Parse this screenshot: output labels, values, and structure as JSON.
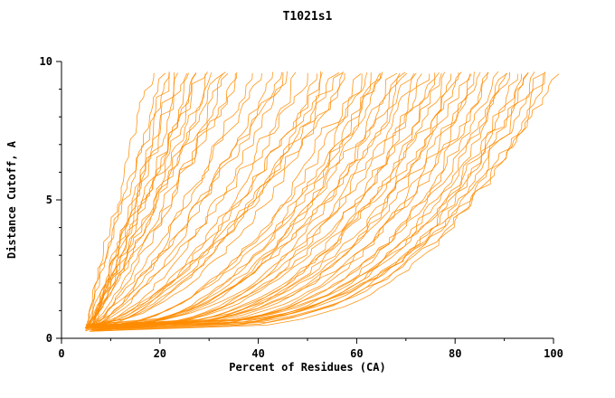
{
  "page": {
    "background": "#ffffff"
  },
  "chart_data": {
    "type": "line",
    "title": "T1021s1",
    "xlabel": "Percent of Residues (CA)",
    "ylabel": "Distance Cutoff, A",
    "xlim": [
      0,
      100
    ],
    "ylim": [
      0,
      10
    ],
    "x_ticks": [
      0,
      20,
      40,
      60,
      80,
      100
    ],
    "x_minor_ticks": [
      10,
      30,
      50,
      70,
      90
    ],
    "y_ticks": [
      0,
      5,
      10
    ],
    "y_minor_ticks": [
      1,
      2,
      3,
      4,
      6,
      7,
      8,
      9
    ],
    "grid": false,
    "legend": "none",
    "line_color": "#ff8c00",
    "axis_color": "#000000",
    "description": "Bundle of ~75 model accuracy curves (GDT-style plot): each curve shows percent of CA residues (x) under a given distance cutoff in Angstroms (y). Curves start near x=5 at y~0.3 and rise to y~9.6, reaching the top at x values from ~18 to ~100.",
    "curve_y_start": 0.35,
    "curve_y_end": 9.6,
    "curves_format": "[x_at_bottom, x_at_top, shape_exponent]",
    "curves": [
      [
        5,
        18,
        1.1
      ],
      [
        5,
        20,
        1.0
      ],
      [
        6,
        21,
        0.9
      ],
      [
        5,
        22,
        1.2
      ],
      [
        6,
        23,
        1.0
      ],
      [
        5,
        24,
        0.95
      ],
      [
        6,
        25,
        1.1
      ],
      [
        5,
        26,
        0.85
      ],
      [
        6,
        27,
        1.0
      ],
      [
        5,
        28,
        0.9
      ],
      [
        6,
        29,
        1.15
      ],
      [
        5,
        30,
        0.8
      ],
      [
        6,
        31,
        1.0
      ],
      [
        5,
        32,
        0.9
      ],
      [
        6,
        33,
        0.75
      ],
      [
        5,
        34,
        1.05
      ],
      [
        6,
        35,
        0.85
      ],
      [
        5,
        36,
        0.95
      ],
      [
        6,
        38,
        0.7
      ],
      [
        5,
        40,
        0.8
      ],
      [
        6,
        42,
        0.65
      ],
      [
        5,
        44,
        0.75
      ],
      [
        6,
        45,
        0.6
      ],
      [
        5,
        46,
        0.8
      ],
      [
        6,
        48,
        0.55
      ],
      [
        5,
        50,
        0.7
      ],
      [
        6,
        52,
        0.6
      ],
      [
        5,
        53,
        0.5
      ],
      [
        6,
        54,
        0.65
      ],
      [
        5,
        55,
        0.55
      ],
      [
        6,
        56,
        0.6
      ],
      [
        5,
        57,
        0.5
      ],
      [
        6,
        58,
        0.65
      ],
      [
        5,
        60,
        0.45
      ],
      [
        6,
        61,
        0.4
      ],
      [
        7,
        62,
        0.5
      ],
      [
        5,
        63,
        0.35
      ],
      [
        6,
        64,
        0.45
      ],
      [
        7,
        65,
        0.4
      ],
      [
        5,
        66,
        0.5
      ],
      [
        6,
        67,
        0.35
      ],
      [
        7,
        68,
        0.45
      ],
      [
        5,
        69,
        0.4
      ],
      [
        6,
        70,
        0.33
      ],
      [
        7,
        71,
        0.45
      ],
      [
        5,
        72,
        0.38
      ],
      [
        6,
        73,
        0.3
      ],
      [
        7,
        74,
        0.42
      ],
      [
        5,
        75,
        0.35
      ],
      [
        6,
        76,
        0.3
      ],
      [
        7,
        77,
        0.4
      ],
      [
        5,
        78,
        0.33
      ],
      [
        6,
        79,
        0.28
      ],
      [
        7,
        80,
        0.38
      ],
      [
        5,
        81,
        0.3
      ],
      [
        6,
        82,
        0.35
      ],
      [
        7,
        83,
        0.28
      ],
      [
        5,
        84,
        0.33
      ],
      [
        6,
        85,
        0.3
      ],
      [
        7,
        86,
        0.26
      ],
      [
        5,
        87,
        0.32
      ],
      [
        6,
        88,
        0.28
      ],
      [
        7,
        89,
        0.25
      ],
      [
        5,
        90,
        0.3
      ],
      [
        6,
        91,
        0.27
      ],
      [
        7,
        92,
        0.24
      ],
      [
        5,
        93,
        0.28
      ],
      [
        6,
        94,
        0.25
      ],
      [
        7,
        95,
        0.3
      ],
      [
        6,
        96,
        0.26
      ],
      [
        7,
        97,
        0.28
      ],
      [
        6,
        98,
        0.25
      ],
      [
        7,
        99,
        0.27
      ],
      [
        6,
        100,
        0.3
      ]
    ]
  }
}
